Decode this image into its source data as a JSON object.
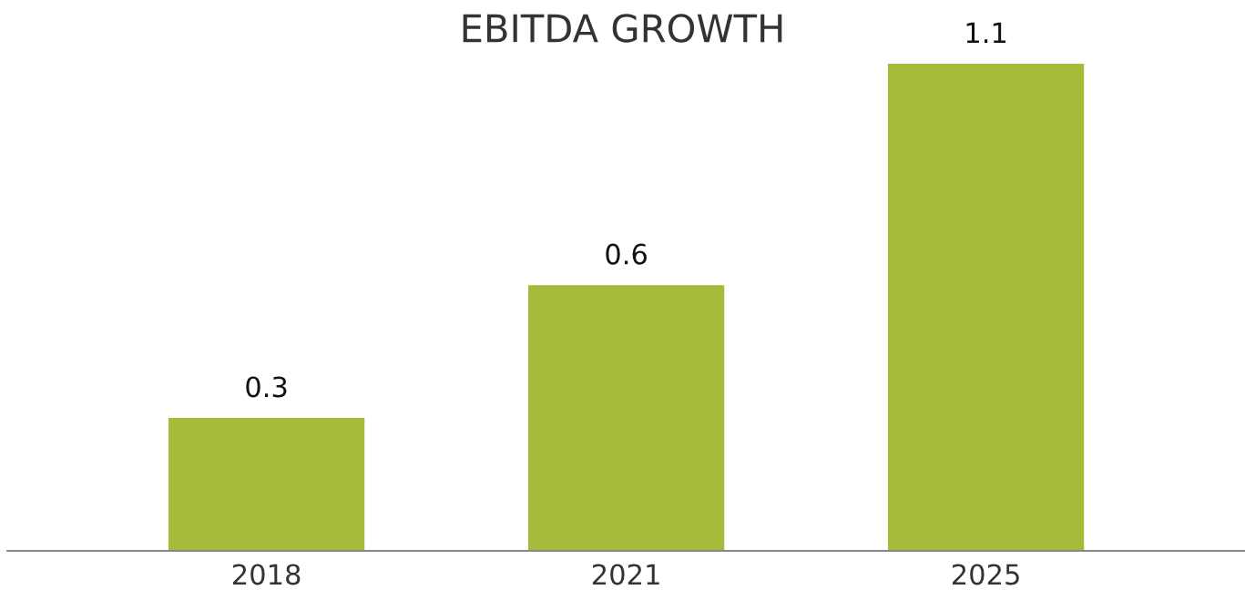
{
  "chart_data": {
    "type": "bar",
    "title": "EBITDA GROWTH",
    "categories": [
      "2018",
      "2021",
      "2025"
    ],
    "values": [
      0.3,
      0.6,
      1.1
    ],
    "color": "#a5bc3a",
    "data_labels": true,
    "grid": false,
    "legend": false
  }
}
